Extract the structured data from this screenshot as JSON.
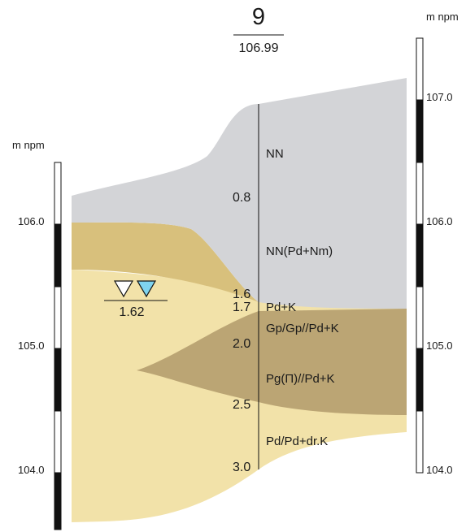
{
  "borehole": {
    "number": "9",
    "elevation": "106.99"
  },
  "scales": {
    "unit_left": "m npm",
    "unit_right": "m npm",
    "left_ticks": [
      "106.0",
      "105.0",
      "104.0"
    ],
    "right_ticks": [
      "107.0",
      "106.0",
      "105.0",
      "104.0"
    ]
  },
  "water_level": {
    "depth": "1.62"
  },
  "depths": [
    "0.8",
    "1.6",
    "1.7",
    "2.0",
    "2.5",
    "3.0"
  ],
  "layers": [
    "NN",
    "NN(Pd+Nm)",
    "Pd+K",
    "Gp/Gp//Pd+K",
    "Pg(П)//Pd+K",
    "Pd/Pd+dr.K"
  ],
  "colors": {
    "fill_made_ground": "#d3d4d7",
    "fill_tan": "#d8c07c",
    "fill_sand": "#f2e2a9",
    "fill_clay": "#bba574",
    "water_symbol_fill": "#7fd3ee",
    "scale_black": "#111111"
  }
}
